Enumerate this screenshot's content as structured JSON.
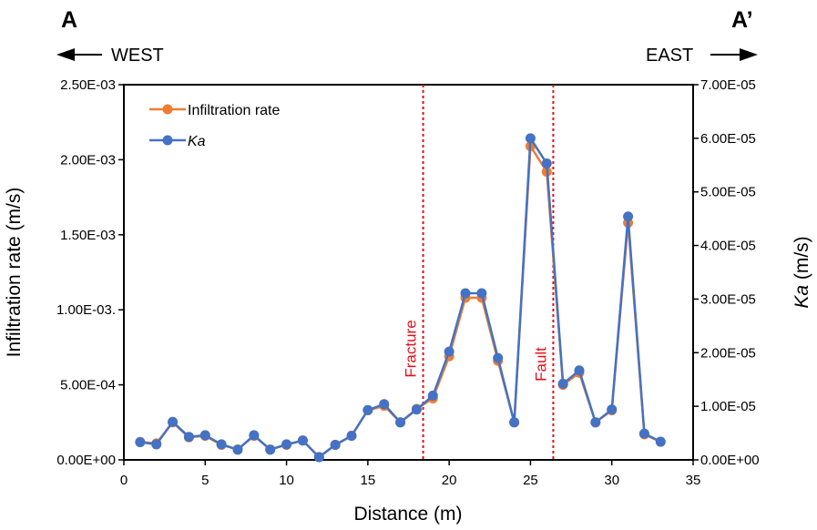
{
  "chart_data": {
    "type": "line",
    "corner_left": "A",
    "corner_right": "A’",
    "direction_left": "WEST",
    "direction_right": "EAST",
    "xlabel": "Distance (m)",
    "ylabel_left": "Infiltration rate (m/s)",
    "ylabel_right_main": "Ka",
    "ylabel_right_unit": " (m/s)",
    "xlim": [
      0,
      35
    ],
    "xticks": [
      "0",
      "5",
      "10",
      "15",
      "20",
      "25",
      "30",
      "35"
    ],
    "ylim_left": [
      0,
      0.0025
    ],
    "yticks_left": [
      "0.00E+00",
      "5.00E-04",
      "1.00E-03.",
      "1.50E-03",
      "2.00E-03",
      "2.50E-03"
    ],
    "ylim_right": [
      0,
      7e-05
    ],
    "yticks_right": [
      "0.00E+00",
      "1.00E-05",
      "2.00E-05",
      "3.00E-05",
      "4.00E-05",
      "5.00E-05",
      "6.00E-05",
      "7.00E-05"
    ],
    "x": [
      1,
      2,
      3,
      4,
      5,
      6,
      7,
      8,
      9,
      10,
      11,
      12,
      13,
      14,
      15,
      16,
      17,
      18,
      19,
      20,
      21,
      22,
      23,
      24,
      25,
      26,
      27,
      28,
      29,
      30,
      31,
      32,
      33
    ],
    "series": [
      {
        "name": "Infiltration rate",
        "axis": "left",
        "color": "#ee7d31",
        "values": [
          0.00012,
          0.00011,
          0.00025,
          0.00015,
          0.00016,
          0.0001,
          7e-05,
          0.00016,
          7e-05,
          0.0001,
          0.00013,
          2e-05,
          0.0001,
          0.00016,
          0.00033,
          0.00036,
          0.00025,
          0.00034,
          0.00041,
          0.00069,
          0.00108,
          0.00108,
          0.00066,
          0.00025,
          0.00209,
          0.00192,
          0.0005,
          0.00058,
          0.00025,
          0.00033,
          0.00158,
          0.00017,
          0.00012
        ]
      },
      {
        "name": "Ka",
        "axis": "right",
        "color": "#4472c4",
        "values": [
          3.3e-06,
          2.9e-06,
          7.1e-06,
          4.3e-06,
          4.6e-06,
          2.9e-06,
          1.9e-06,
          4.6e-06,
          1.9e-06,
          2.9e-06,
          3.6e-06,
          5e-07,
          2.8e-06,
          4.5e-06,
          9.3e-06,
          1.04e-05,
          7e-06,
          9.4e-06,
          1.2e-05,
          2.02e-05,
          3.11e-05,
          3.11e-05,
          1.9e-05,
          7e-06,
          6e-05,
          5.53e-05,
          1.42e-05,
          1.67e-05,
          7e-06,
          9.4e-06,
          4.54e-05,
          4.9e-06,
          3.4e-06
        ]
      }
    ],
    "annotations": [
      {
        "label": "Fracture",
        "x": 18.4,
        "color": "#e3101b"
      },
      {
        "label": "Fault",
        "x": 26.4,
        "color": "#e3101b"
      }
    ]
  }
}
